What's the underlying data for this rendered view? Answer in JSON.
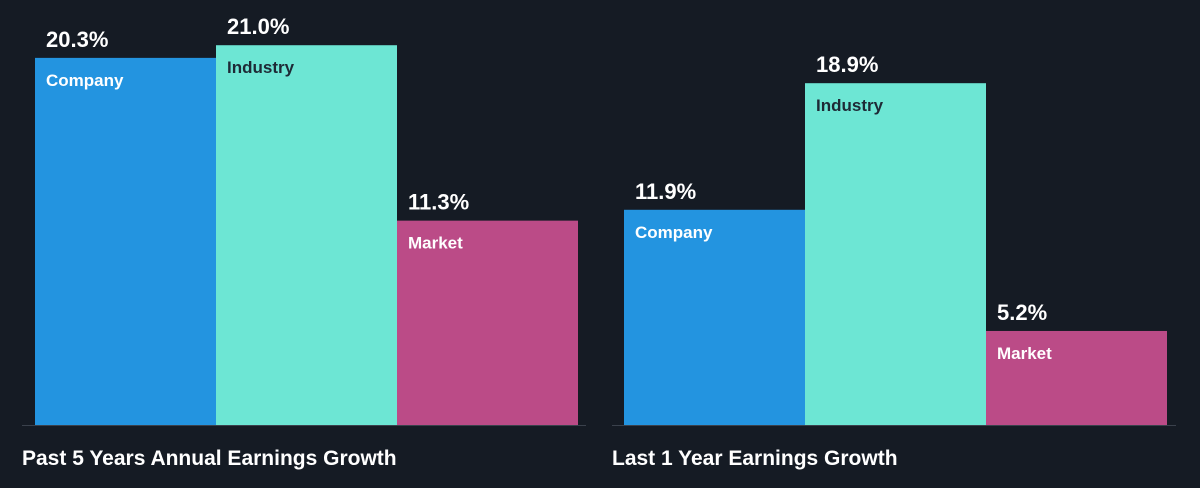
{
  "colors": {
    "background": "#151b24",
    "company": "#2394e0",
    "industry": "#6de6d4",
    "market": "#bb4b87",
    "baseline": "#3a414c",
    "value_text": "#ffffff",
    "label_text_light": "#ffffff",
    "label_text_dark": "#1e2a36"
  },
  "chart_data": [
    {
      "type": "bar",
      "title": "Past 5 Years Annual Earnings Growth",
      "categories": [
        "Company",
        "Industry",
        "Market"
      ],
      "values": [
        20.3,
        21.0,
        11.3
      ],
      "value_labels": [
        "20.3%",
        "21.0%",
        "11.3%"
      ],
      "unit": "%",
      "ylim": [
        0,
        23.5
      ],
      "grid": false,
      "legend": "none"
    },
    {
      "type": "bar",
      "title": "Last 1 Year Earnings Growth",
      "categories": [
        "Company",
        "Industry",
        "Market"
      ],
      "values": [
        11.9,
        18.9,
        5.2
      ],
      "value_labels": [
        "11.9%",
        "18.9%",
        "5.2%"
      ],
      "unit": "%",
      "ylim": [
        0,
        23.5
      ],
      "grid": false,
      "legend": "none"
    }
  ]
}
